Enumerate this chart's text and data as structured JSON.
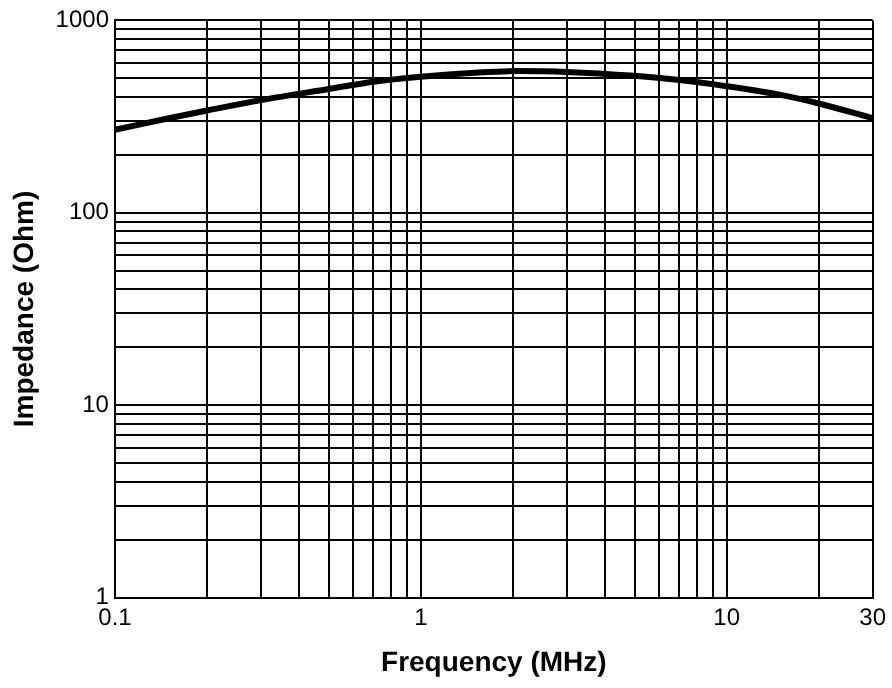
{
  "chart_data": {
    "type": "line",
    "xlabel": "Frequency (MHz)",
    "ylabel": "Impedance (Ohm)",
    "log": "xy",
    "x": [
      0.1,
      0.15,
      0.2,
      0.3,
      0.5,
      0.7,
      1,
      1.5,
      2,
      3,
      5,
      7,
      10,
      15,
      20,
      30
    ],
    "series": [
      {
        "color": "#000000",
        "values": [
          270,
          310,
          340,
          385,
          440,
          480,
          510,
          535,
          545,
          540,
          515,
          490,
          455,
          410,
          370,
          310
        ]
      }
    ],
    "xlim": [
      0.1,
      30
    ],
    "ylim": [
      1,
      1000
    ],
    "xticks": [
      0.1,
      {
        "value": 0.2,
        "label": null
      },
      {
        "value": 0.3,
        "label": null
      },
      {
        "value": 0.4,
        "label": null
      },
      {
        "value": 0.5,
        "label": null
      },
      {
        "value": 0.6,
        "label": null
      },
      {
        "value": 0.7,
        "label": null
      },
      {
        "value": 0.8,
        "label": null
      },
      {
        "value": 0.9,
        "label": null
      },
      1,
      {
        "value": 2,
        "label": null
      },
      {
        "value": 3,
        "label": null
      },
      {
        "value": 4,
        "label": null
      },
      {
        "value": 5,
        "label": null
      },
      {
        "value": 6,
        "label": null
      },
      {
        "value": 7,
        "label": null
      },
      {
        "value": 8,
        "label": null
      },
      {
        "value": 9,
        "label": null
      },
      10,
      {
        "value": 20,
        "label": null
      },
      30
    ],
    "yticks": [
      1,
      {
        "value": 2,
        "label": null
      },
      {
        "value": 3,
        "label": null
      },
      {
        "value": 4,
        "label": null
      },
      {
        "value": 5,
        "label": null
      },
      {
        "value": 6,
        "label": null
      },
      {
        "value": 7,
        "label": null
      },
      {
        "value": 8,
        "label": null
      },
      {
        "value": 9,
        "label": null
      },
      10,
      {
        "value": 20,
        "label": null
      },
      {
        "value": 30,
        "label": null
      },
      {
        "value": 40,
        "label": null
      },
      {
        "value": 50,
        "label": null
      },
      {
        "value": 60,
        "label": null
      },
      {
        "value": 70,
        "label": null
      },
      {
        "value": 80,
        "label": null
      },
      {
        "value": 90,
        "label": null
      },
      100,
      {
        "value": 200,
        "label": null
      },
      {
        "value": 300,
        "label": null
      },
      {
        "value": 400,
        "label": null
      },
      {
        "value": 500,
        "label": null
      },
      {
        "value": 600,
        "label": null
      },
      {
        "value": 700,
        "label": null
      },
      {
        "value": 800,
        "label": null
      },
      {
        "value": 900,
        "label": null
      },
      1000
    ],
    "grid": true,
    "marker": "none",
    "line_style": "solid",
    "legend": false
  }
}
